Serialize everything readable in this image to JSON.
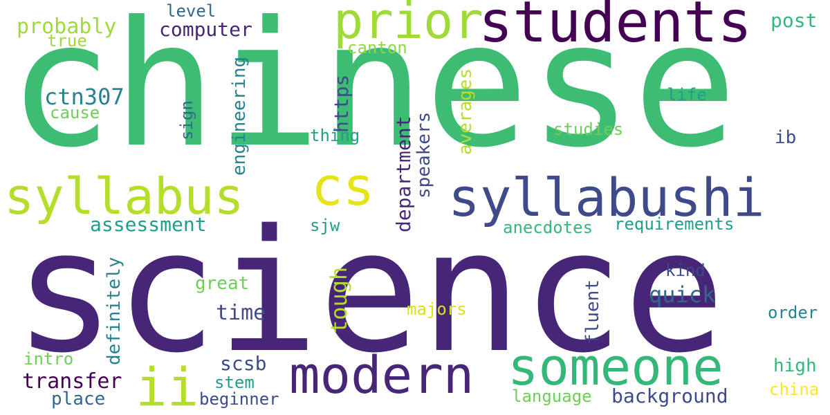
{
  "palette": {
    "dark_purple": "#440154",
    "indigo": "#482677",
    "slate_blue": "#3e4a89",
    "steel_blue": "#31688e",
    "teal": "#26828e",
    "sea_green": "#1f9e89",
    "green": "#35b779",
    "emerald": "#3dbc74",
    "light_green": "#6ece58",
    "lime": "#b5de2b",
    "yellow": "#fde725"
  },
  "words": [
    {
      "text": "chinese",
      "color": "#3dbc74"
    },
    {
      "text": "science",
      "color": "#482677"
    },
    {
      "text": "students",
      "color": "#440154"
    },
    {
      "text": "prior",
      "color": "#a0da39"
    },
    {
      "text": "syllabus",
      "color": "#b5de2b"
    },
    {
      "text": "cs",
      "color": "#e4e419"
    },
    {
      "text": "syllabushi",
      "color": "#3e4a89"
    },
    {
      "text": "modern",
      "color": "#482677"
    },
    {
      "text": "someone",
      "color": "#35b779"
    },
    {
      "text": "ii",
      "color": "#b5de2b"
    },
    {
      "text": "computer",
      "color": "#482677"
    },
    {
      "text": "probably",
      "color": "#a0da39"
    },
    {
      "text": "level",
      "color": "#31688e"
    },
    {
      "text": "true",
      "color": "#a0da39"
    },
    {
      "text": "canton",
      "color": "#8fd744"
    },
    {
      "text": "post",
      "color": "#35b779"
    },
    {
      "text": "ctn307",
      "color": "#26828e"
    },
    {
      "text": "cause",
      "color": "#6ece58"
    },
    {
      "text": "engineering",
      "color": "#26828e"
    },
    {
      "text": "sign",
      "color": "#31688e"
    },
    {
      "text": "https",
      "color": "#3e4a89"
    },
    {
      "text": "thing",
      "color": "#1f9e89"
    },
    {
      "text": "department",
      "color": "#482677"
    },
    {
      "text": "speakers",
      "color": "#3e4a89"
    },
    {
      "text": "averages",
      "color": "#b5de2b"
    },
    {
      "text": "life",
      "color": "#1f9e89"
    },
    {
      "text": "studies",
      "color": "#6ece58"
    },
    {
      "text": "ib",
      "color": "#3e4a89"
    },
    {
      "text": "assessment",
      "color": "#1f9e89"
    },
    {
      "text": "sjw",
      "color": "#1f9e89"
    },
    {
      "text": "anecdotes",
      "color": "#35b779"
    },
    {
      "text": "requirements",
      "color": "#1f9e89"
    },
    {
      "text": "definitely",
      "color": "#26828e"
    },
    {
      "text": "great",
      "color": "#6ece58"
    },
    {
      "text": "tough",
      "color": "#b5de2b"
    },
    {
      "text": "time",
      "color": "#3e4a89"
    },
    {
      "text": "quick",
      "color": "#31688e"
    },
    {
      "text": "kind",
      "color": "#3e4a89"
    },
    {
      "text": "fluent",
      "color": "#3e4a89"
    },
    {
      "text": "majors",
      "color": "#d8e219"
    },
    {
      "text": "order",
      "color": "#26828e"
    },
    {
      "text": "intro",
      "color": "#6ece58"
    },
    {
      "text": "scsb",
      "color": "#3e4a89"
    },
    {
      "text": "transfer",
      "color": "#440154"
    },
    {
      "text": "stem",
      "color": "#1f9e89"
    },
    {
      "text": "place",
      "color": "#31688e"
    },
    {
      "text": "beginner",
      "color": "#3e4a89"
    },
    {
      "text": "language",
      "color": "#6ece58"
    },
    {
      "text": "background",
      "color": "#3e4a89"
    },
    {
      "text": "high",
      "color": "#35b779"
    },
    {
      "text": "china",
      "color": "#fde725"
    }
  ]
}
